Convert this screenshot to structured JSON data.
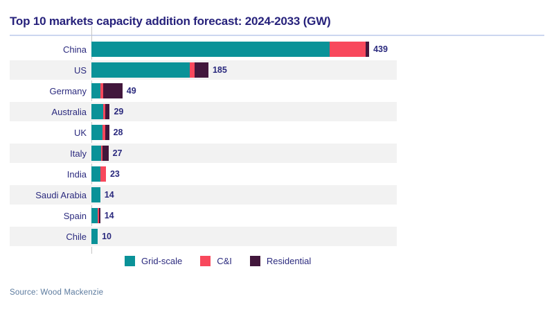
{
  "title": "Top 10 markets capacity addition forecast: 2024-2033 (GW)",
  "source": "Source: Wood Mackenzie",
  "colors": {
    "title_text": "#26217B",
    "label_text": "#2B2A7E",
    "grid_scale": "#0A9298",
    "ci": "#F8485C",
    "residential": "#42173C",
    "row_stripe": "#F2F2F2",
    "axis_line": "#C5C5C5",
    "title_underline": "#CCD6F0",
    "source_text": "#5B7A9E"
  },
  "legend": {
    "items": [
      {
        "label": "Grid-scale",
        "color": "#0A9298"
      },
      {
        "label": "C&I",
        "color": "#F8485C"
      },
      {
        "label": "Residential",
        "color": "#42173C"
      }
    ]
  },
  "chart_data": {
    "type": "bar",
    "orientation": "horizontal",
    "title": "Top 10 markets capacity addition forecast: 2024-2033 (GW)",
    "categories": [
      "China",
      "US",
      "Germany",
      "Australia",
      "UK",
      "Italy",
      "India",
      "Saudi Arabia",
      "Spain",
      "Chile"
    ],
    "totals": [
      439,
      185,
      49,
      29,
      28,
      27,
      23,
      14,
      14,
      10
    ],
    "series": [
      {
        "name": "Grid-scale",
        "color": "#0A9298",
        "values": [
          377,
          155,
          14,
          19,
          18,
          15,
          14,
          14,
          10,
          10
        ]
      },
      {
        "name": "C&I",
        "color": "#F8485C",
        "values": [
          57,
          8,
          5,
          3,
          4,
          3,
          9,
          0,
          2,
          0
        ]
      },
      {
        "name": "Residential",
        "color": "#42173C",
        "values": [
          5,
          22,
          30,
          7,
          6,
          9,
          0,
          0,
          2,
          0
        ]
      }
    ],
    "xlim": [
      0,
      439
    ],
    "value_labels_shown": true,
    "grid": false,
    "legend_position": "bottom"
  }
}
